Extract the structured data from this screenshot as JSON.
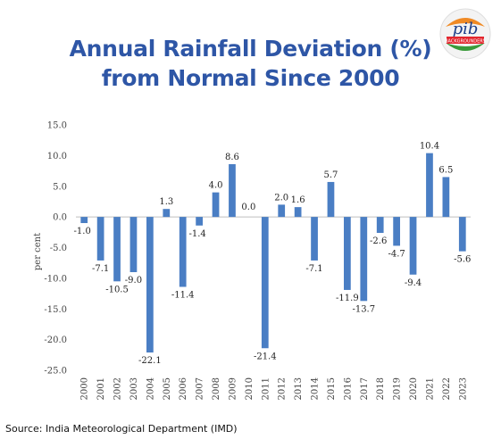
{
  "title_line1": "Annual Rainfall Deviation (%)",
  "title_line2": "from Normal Since 2000",
  "source": "Source: India Meteorological Department (IMD)",
  "logo": {
    "text": "BACKGROUNDERS",
    "icon": "pib-logo-icon"
  },
  "chart_data": {
    "type": "bar",
    "title": "Annual Rainfall Deviation (%) from Normal Since 2000",
    "xlabel": "",
    "ylabel": "per cent",
    "ylim": [
      -25,
      15
    ],
    "yticks": [
      -25,
      -20,
      -15,
      -10,
      -5,
      0,
      5,
      10,
      15
    ],
    "ytick_labels": [
      "-25.0",
      "-20.0",
      "-15.0",
      "-10.0",
      "-5.0",
      "0.0",
      "5.0",
      "10.0",
      "15.0"
    ],
    "grid": false,
    "bar_color": "#4a7ec4",
    "categories": [
      "2000",
      "2001",
      "2002",
      "2003",
      "2004",
      "2005",
      "2006",
      "2007",
      "2008",
      "2009",
      "2010",
      "2011",
      "2012",
      "2013",
      "2014",
      "2015",
      "2016",
      "2017",
      "2018",
      "2019",
      "2020",
      "2021",
      "2022",
      "2023"
    ],
    "values": [
      -1.0,
      -7.1,
      -10.5,
      -9.0,
      -22.1,
      1.3,
      -11.4,
      -1.4,
      4.0,
      8.6,
      0.0,
      -21.4,
      2.0,
      1.6,
      -7.1,
      5.7,
      -11.9,
      -13.7,
      -2.6,
      -4.7,
      -9.4,
      10.4,
      6.5,
      -5.6
    ],
    "value_labels": [
      "-1.0",
      "-7.1",
      "-10.5",
      "-9.0",
      "-22.1",
      "1.3",
      "-11.4",
      "-1.4",
      "4.0",
      "8.6",
      "0.0",
      "-21.4",
      "2.0",
      "1.6",
      "-7.1",
      "5.7",
      "-11.9",
      "-13.7",
      "-2.6",
      "-4.7",
      "-9.4",
      "10.4",
      "6.5",
      "-5.6"
    ]
  }
}
